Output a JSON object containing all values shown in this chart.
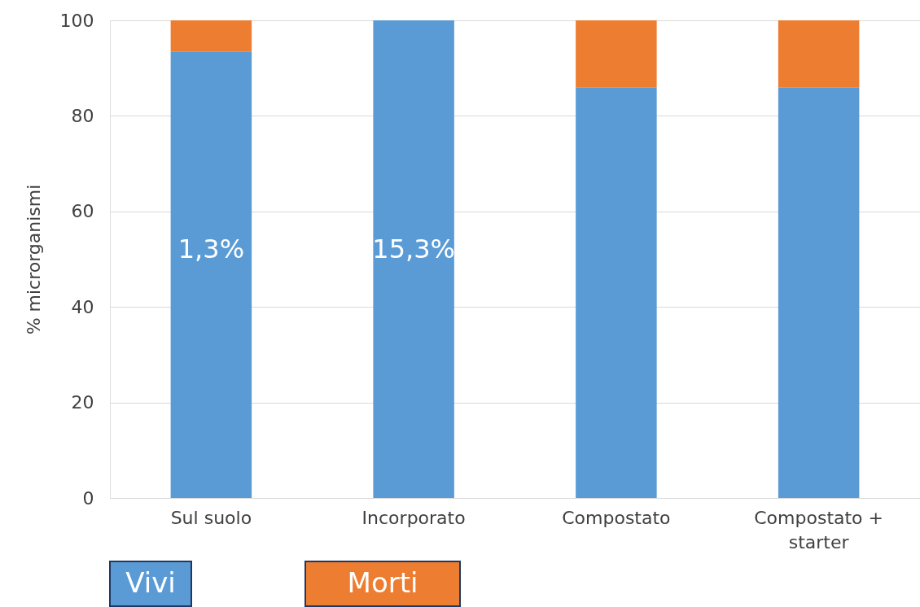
{
  "chart_data": {
    "type": "bar",
    "stacked": true,
    "categories": [
      "Sul suolo",
      "Incorporato",
      "Compostato",
      "Compostato +\nstarter"
    ],
    "ylabel": "% microrganismi",
    "ylim": [
      0,
      100
    ],
    "yticks": [
      0,
      20,
      40,
      60,
      80,
      100
    ],
    "grid": "y",
    "legend": "bottom",
    "series": [
      {
        "name": "Vivi",
        "color": "#5b9bd5",
        "values": [
          93.5,
          100,
          86,
          86
        ]
      },
      {
        "name": "Morti",
        "color": "#ed7d31",
        "values": [
          6.5,
          0,
          14,
          14
        ]
      }
    ],
    "annotations": [
      "1,3%",
      "15,3%"
    ]
  }
}
